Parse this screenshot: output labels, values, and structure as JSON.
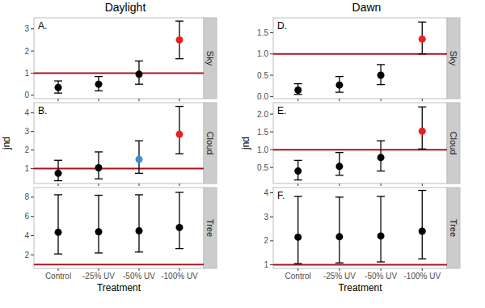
{
  "chart_data": [
    {
      "type": "scatter",
      "title": "Daylight",
      "facet": "Sky",
      "annotation": "A.",
      "categories": [
        "Control",
        "-25% UV",
        "-50% UV",
        "-100% UV"
      ],
      "values": [
        0.35,
        0.5,
        0.95,
        2.5
      ],
      "lower": [
        0.1,
        0.2,
        0.5,
        1.65
      ],
      "upper": [
        0.65,
        0.85,
        1.55,
        3.35
      ],
      "colors": [
        "#000000",
        "#000000",
        "#000000",
        "#e8231f"
      ],
      "hline": 1,
      "ylim": [
        -0.15,
        3.5
      ],
      "yticks": [
        0,
        1,
        2,
        3
      ],
      "tick_labels": "y"
    },
    {
      "type": "scatter",
      "facet": "Cloud",
      "annotation": "B.",
      "ylabel": "jnd",
      "categories": [
        "Control",
        "-25% UV",
        "-50% UV",
        "-100% UV"
      ],
      "values": [
        0.75,
        1.05,
        1.5,
        2.85
      ],
      "lower": [
        0.35,
        0.45,
        0.75,
        1.8
      ],
      "upper": [
        1.45,
        1.9,
        2.5,
        4.35
      ],
      "colors": [
        "#000000",
        "#000000",
        "#3a8fd4",
        "#e8231f"
      ],
      "hline": 1,
      "ylim": [
        0.2,
        4.55
      ],
      "yticks": [
        1,
        2,
        3,
        4
      ],
      "tick_labels": "y"
    },
    {
      "type": "scatter",
      "facet": "Tree",
      "xlabel": "Treatment",
      "categories": [
        "Control",
        "-25% UV",
        "-50% UV",
        "-100% UV"
      ],
      "values": [
        4.35,
        4.4,
        4.5,
        4.85
      ],
      "lower": [
        2.1,
        2.2,
        2.3,
        2.65
      ],
      "upper": [
        8.25,
        8.2,
        8.25,
        8.5
      ],
      "colors": [
        "#000000",
        "#000000",
        "#000000",
        "#000000"
      ],
      "hline": 1,
      "ylim": [
        0.6,
        9.0
      ],
      "yticks": [
        2,
        4,
        6,
        8
      ]
    },
    {
      "type": "scatter",
      "title": "Dawn",
      "facet": "Sky",
      "annotation": "D.",
      "categories": [
        "Control",
        "-25% UV",
        "-50% UV",
        "-100% UV"
      ],
      "values": [
        0.15,
        0.27,
        0.5,
        1.35
      ],
      "lower": [
        0.05,
        0.1,
        0.28,
        1.0
      ],
      "upper": [
        0.3,
        0.47,
        0.75,
        1.75
      ],
      "colors": [
        "#000000",
        "#000000",
        "#000000",
        "#e8231f"
      ],
      "hline": 1,
      "ylim": [
        -0.05,
        1.85
      ],
      "yticks": [
        {
          "value": 0,
          "label": "0.0"
        },
        0.5,
        {
          "value": 1,
          "label": "1.0"
        },
        1.5
      ],
      "tick_labels": "y"
    },
    {
      "type": "scatter",
      "facet": "Cloud",
      "annotation": "E.",
      "ylabel": "jnd",
      "categories": [
        "Control",
        "-25% UV",
        "-50% UV",
        "-100% UV"
      ],
      "values": [
        0.4,
        0.53,
        0.78,
        1.52
      ],
      "lower": [
        0.15,
        0.28,
        0.4,
        1.02
      ],
      "upper": [
        0.7,
        0.92,
        1.25,
        2.2
      ],
      "colors": [
        "#000000",
        "#000000",
        "#000000",
        "#e8231f"
      ],
      "hline": 1,
      "ylim": [
        0.05,
        2.32
      ],
      "yticks": [
        0.5,
        {
          "value": 1,
          "label": "1.0"
        },
        1.5,
        {
          "value": 2,
          "label": "2.0"
        }
      ],
      "tick_labels": "y"
    },
    {
      "type": "scatter",
      "facet": "Tree",
      "annotation": "F.",
      "xlabel": "Treatment",
      "categories": [
        "Control",
        "-25% UV",
        "-50% UV",
        "-100% UV"
      ],
      "values": [
        2.15,
        2.17,
        2.2,
        2.4
      ],
      "lower": [
        1.05,
        1.08,
        1.12,
        1.25
      ],
      "upper": [
        3.85,
        3.82,
        3.85,
        4.1
      ],
      "colors": [
        "#000000",
        "#000000",
        "#000000",
        "#000000"
      ],
      "hline": 1,
      "ylim": [
        0.85,
        4.22
      ],
      "yticks": [
        1,
        2,
        3,
        4
      ]
    }
  ]
}
